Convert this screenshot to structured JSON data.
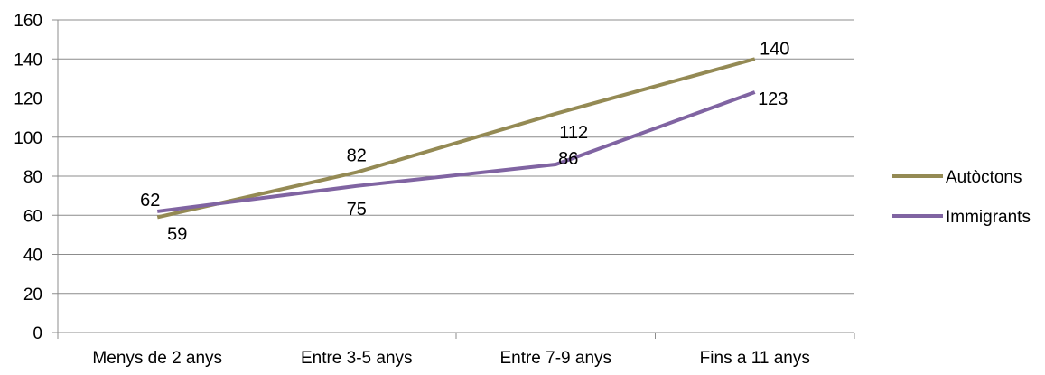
{
  "chart_data": {
    "type": "line",
    "categories": [
      "Menys de 2 anys",
      "Entre 3-5 anys",
      "Entre 7-9 anys",
      "Fins a 11 anys"
    ],
    "series": [
      {
        "name": "Autòctons",
        "values": [
          59,
          82,
          112,
          140
        ],
        "color": "#948a54"
      },
      {
        "name": "Immigrants",
        "values": [
          62,
          75,
          86,
          123
        ],
        "color": "#8064a2"
      }
    ],
    "yticks": [
      "0",
      "20",
      "40",
      "60",
      "80",
      "100",
      "120",
      "140",
      "160"
    ],
    "ylim": [
      0,
      160
    ],
    "grid": true,
    "legend": "right",
    "title": "",
    "xlabel": "",
    "ylabel": ""
  }
}
